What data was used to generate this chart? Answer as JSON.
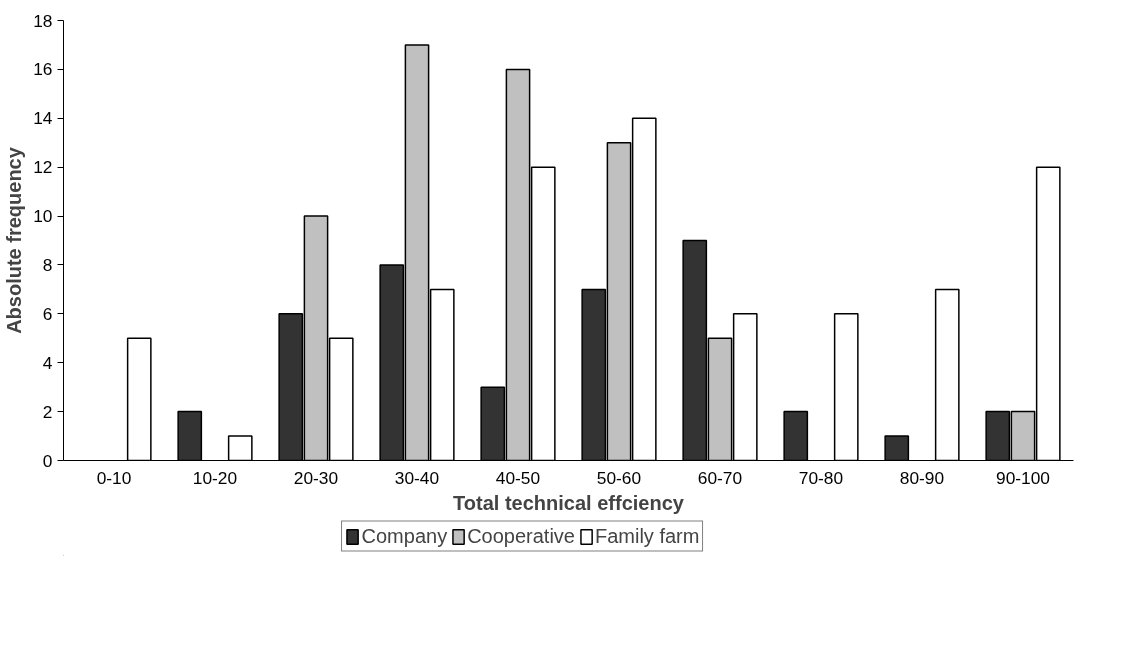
{
  "chart_data": {
    "type": "bar",
    "xlabel": "Total technical effciency",
    "ylabel": "Absolute frequency",
    "categories": [
      "0-10",
      "10-20",
      "20-30",
      "30-40",
      "40-50",
      "50-60",
      "60-70",
      "70-80",
      "80-90",
      "90-100"
    ],
    "series": [
      {
        "name": "Company",
        "color": "#333333",
        "values": [
          0,
          2,
          6,
          8,
          3,
          7,
          9,
          2,
          1,
          2
        ]
      },
      {
        "name": "Cooperative",
        "color": "#c0c0c0",
        "values": [
          0,
          0,
          10,
          17,
          16,
          13,
          5,
          0,
          0,
          2
        ]
      },
      {
        "name": "Family farm",
        "color": "#ffffff",
        "values": [
          5,
          1,
          5,
          7,
          12,
          14,
          6,
          6,
          7,
          12
        ]
      }
    ],
    "ylim": [
      0,
      18
    ],
    "yticks": [
      0,
      2,
      4,
      6,
      8,
      10,
      12,
      14,
      16,
      18
    ],
    "grid": false,
    "legend": "bottom"
  }
}
